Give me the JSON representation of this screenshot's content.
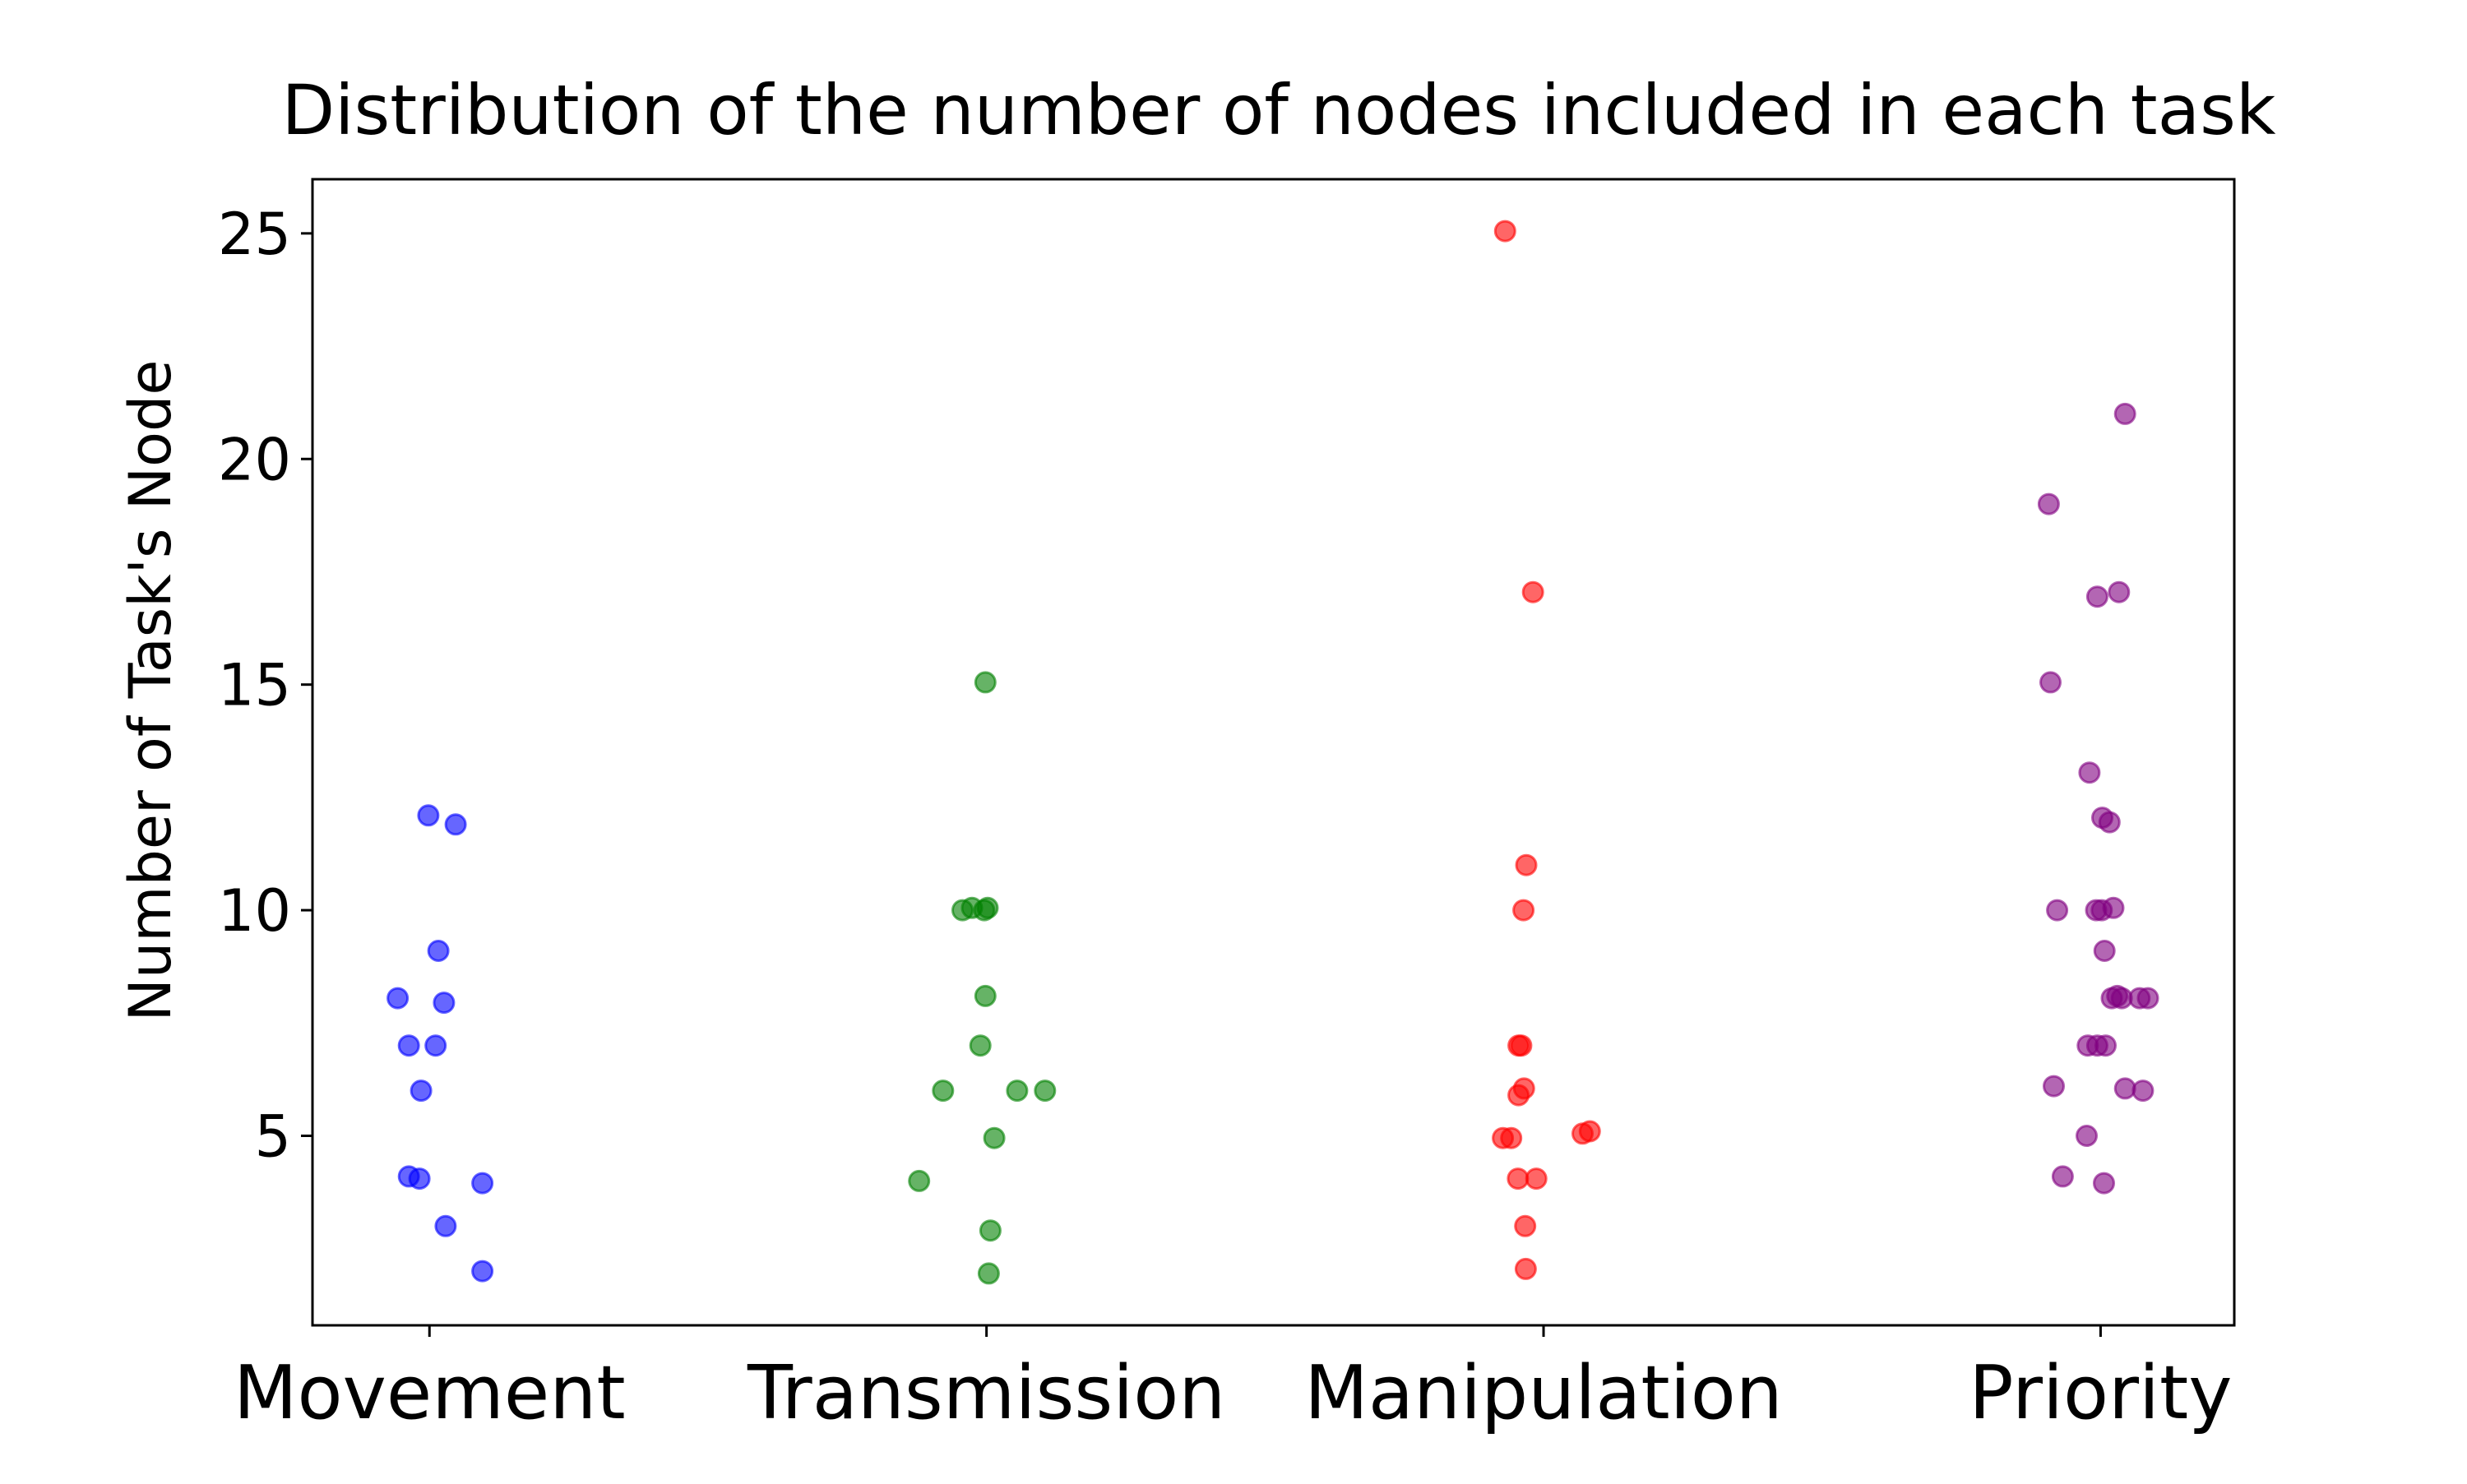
{
  "chart_data": {
    "type": "scatter",
    "title": "Distribution of the number of nodes included in each task",
    "xlabel": "",
    "ylabel": "Number of Task's Node",
    "categories": [
      "Movement",
      "Transmission",
      "Manipulation",
      "Priority"
    ],
    "ylim": [
      0.8,
      26.2
    ],
    "yticks": [
      5,
      10,
      15,
      20,
      25
    ],
    "grid": false,
    "legend": "none",
    "marker_alpha": 0.6,
    "series": [
      {
        "category": "Movement",
        "color": "#0000ff",
        "points": [
          {
            "x": -0.002,
            "y": 12.1
          },
          {
            "x": 0.047,
            "y": 11.9
          },
          {
            "x": 0.016,
            "y": 9.1
          },
          {
            "x": -0.057,
            "y": 8.05
          },
          {
            "x": 0.026,
            "y": 7.95
          },
          {
            "x": -0.037,
            "y": 7.0
          },
          {
            "x": 0.011,
            "y": 7.0
          },
          {
            "x": -0.015,
            "y": 6.0
          },
          {
            "x": -0.037,
            "y": 4.1
          },
          {
            "x": -0.018,
            "y": 4.05
          },
          {
            "x": 0.095,
            "y": 3.95
          },
          {
            "x": 0.029,
            "y": 3.0
          },
          {
            "x": 0.095,
            "y": 2.0
          }
        ]
      },
      {
        "category": "Transmission",
        "color": "#008000",
        "points": [
          {
            "x": -0.002,
            "y": 15.05
          },
          {
            "x": -0.043,
            "y": 10.0
          },
          {
            "x": -0.026,
            "y": 10.05
          },
          {
            "x": -0.004,
            "y": 10.0
          },
          {
            "x": 0.002,
            "y": 10.05
          },
          {
            "x": -0.002,
            "y": 8.1
          },
          {
            "x": -0.011,
            "y": 7.0
          },
          {
            "x": -0.078,
            "y": 6.0
          },
          {
            "x": 0.055,
            "y": 6.0
          },
          {
            "x": 0.105,
            "y": 6.0
          },
          {
            "x": 0.014,
            "y": 4.95
          },
          {
            "x": -0.121,
            "y": 4.0
          },
          {
            "x": 0.007,
            "y": 2.9
          },
          {
            "x": 0.004,
            "y": 1.95
          }
        ]
      },
      {
        "category": "Manipulation",
        "color": "#ff0000",
        "points": [
          {
            "x": -0.069,
            "y": 25.05
          },
          {
            "x": -0.019,
            "y": 17.05
          },
          {
            "x": -0.031,
            "y": 11.0
          },
          {
            "x": -0.036,
            "y": 10.0
          },
          {
            "x": -0.045,
            "y": 7.0
          },
          {
            "x": -0.04,
            "y": 7.0
          },
          {
            "x": -0.035,
            "y": 6.05
          },
          {
            "x": -0.045,
            "y": 5.9
          },
          {
            "x": -0.073,
            "y": 4.95
          },
          {
            "x": -0.058,
            "y": 4.95
          },
          {
            "x": 0.07,
            "y": 5.05
          },
          {
            "x": 0.083,
            "y": 5.1
          },
          {
            "x": -0.046,
            "y": 4.05
          },
          {
            "x": -0.013,
            "y": 4.05
          },
          {
            "x": -0.033,
            "y": 3.0
          },
          {
            "x": -0.032,
            "y": 2.05
          }
        ]
      },
      {
        "category": "Priority",
        "color": "#800080",
        "points": [
          {
            "x": 0.044,
            "y": 21.0
          },
          {
            "x": -0.093,
            "y": 19.0
          },
          {
            "x": -0.006,
            "y": 16.95
          },
          {
            "x": 0.033,
            "y": 17.05
          },
          {
            "x": -0.09,
            "y": 15.05
          },
          {
            "x": -0.02,
            "y": 13.05
          },
          {
            "x": 0.003,
            "y": 12.05
          },
          {
            "x": 0.016,
            "y": 11.95
          },
          {
            "x": -0.078,
            "y": 10.0
          },
          {
            "x": -0.008,
            "y": 10.0
          },
          {
            "x": 0.002,
            "y": 10.0
          },
          {
            "x": 0.023,
            "y": 10.05
          },
          {
            "x": 0.007,
            "y": 9.1
          },
          {
            "x": 0.02,
            "y": 8.05
          },
          {
            "x": 0.03,
            "y": 8.1
          },
          {
            "x": 0.038,
            "y": 8.05
          },
          {
            "x": 0.07,
            "y": 8.05
          },
          {
            "x": 0.085,
            "y": 8.05
          },
          {
            "x": -0.023,
            "y": 7.0
          },
          {
            "x": -0.006,
            "y": 7.0
          },
          {
            "x": 0.009,
            "y": 7.0
          },
          {
            "x": -0.084,
            "y": 6.1
          },
          {
            "x": 0.044,
            "y": 6.05
          },
          {
            "x": 0.076,
            "y": 6.0
          },
          {
            "x": -0.025,
            "y": 5.0
          },
          {
            "x": -0.068,
            "y": 4.1
          },
          {
            "x": 0.006,
            "y": 3.95
          }
        ]
      }
    ]
  }
}
